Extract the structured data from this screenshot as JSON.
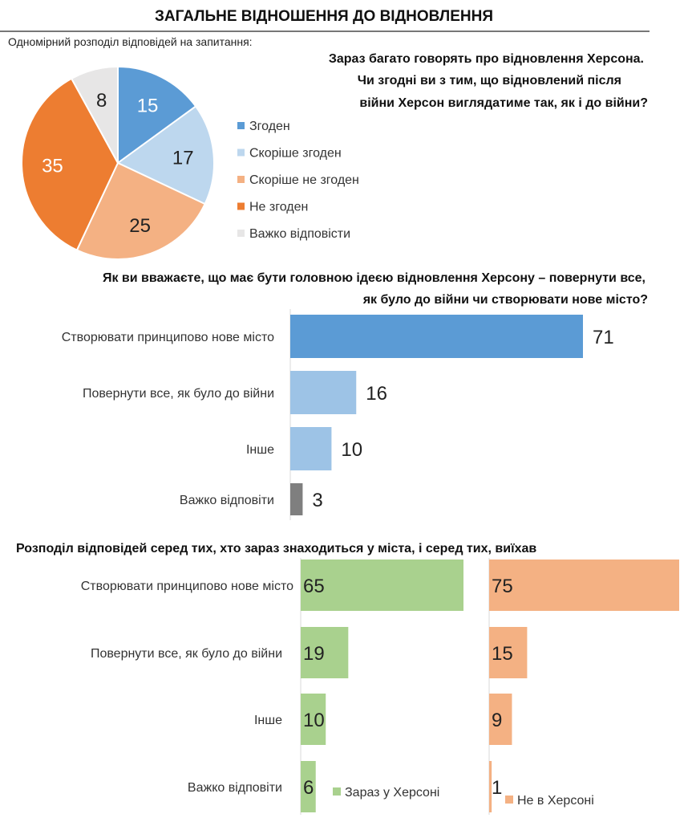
{
  "header": {
    "title": "ЗАГАЛЬНЕ ВІДНОШЕННЯ ДО ВІДНОВЛЕННЯ",
    "subtitle": "Одномірний розподіл відповідей на запитання:"
  },
  "colors": {
    "blue": "#5b9bd5",
    "lightblue": "#bdd7ee",
    "lightorange": "#f4b183",
    "orange": "#ed7d31",
    "gray": "#e7e6e6",
    "barblue": "#9dc3e6",
    "darkgray": "#7f7f7f",
    "green": "#a9d18e",
    "salmon": "#f4b183"
  },
  "chart_data": [
    {
      "type": "pie",
      "title": "Зараз багато говорять про відновлення Херсона. Чи згодні ви з тим, що відновлений після війни Херсон виглядатиме так, як і до війни?",
      "title_lines": [
        "Зараз багато говорять про відновлення Херсона.",
        "Чи згодні ви з тим, що відновлений після",
        "війни Херсон виглядатиме так, як і до війни?"
      ],
      "slices": [
        {
          "label": "Згоден",
          "value": 15,
          "color": "#5b9bd5",
          "text_color": "#ffffff"
        },
        {
          "label": "Скоріше згоден",
          "value": 17,
          "color": "#bdd7ee",
          "text_color": "#222222"
        },
        {
          "label": "Скоріше не згоден",
          "value": 25,
          "color": "#f4b183",
          "text_color": "#222222"
        },
        {
          "label": "Не згоден",
          "value": 35,
          "color": "#ed7d31",
          "text_color": "#ffffff"
        },
        {
          "label": "Важко відповісти",
          "value": 8,
          "color": "#e7e6e6",
          "text_color": "#222222"
        }
      ],
      "legend": "right"
    },
    {
      "type": "bar",
      "orientation": "horizontal",
      "title_lines": [
        "Як ви вважаєте, що має бути головною ідеєю відновлення Херсону – повернути все,",
        "як було до війни чи створювати нове місто?"
      ],
      "categories": [
        "Створювати принципово нове місто",
        "Повернути все, як було до війни",
        "Інше",
        "Важко відповіти"
      ],
      "values": [
        71,
        16,
        10,
        3
      ],
      "colors": [
        "#5b9bd5",
        "#9dc3e6",
        "#9dc3e6",
        "#7f7f7f"
      ]
    },
    {
      "type": "bar",
      "orientation": "horizontal",
      "title": "Розподіл відповідей серед тих, хто зараз знаходиться у міста, і серед тих, виїхав",
      "categories": [
        "Створювати принципово нове місто",
        "Повернути все, як було до війни",
        "Інше",
        "Важко відповіти"
      ],
      "series": [
        {
          "name": "Зараз у Херсоні",
          "values": [
            65,
            19,
            10,
            6
          ],
          "color": "#a9d18e"
        },
        {
          "name": "Не в Херсоні",
          "values": [
            75,
            15,
            9,
            1
          ],
          "color": "#f4b183"
        }
      ],
      "legend": "bottom"
    }
  ]
}
